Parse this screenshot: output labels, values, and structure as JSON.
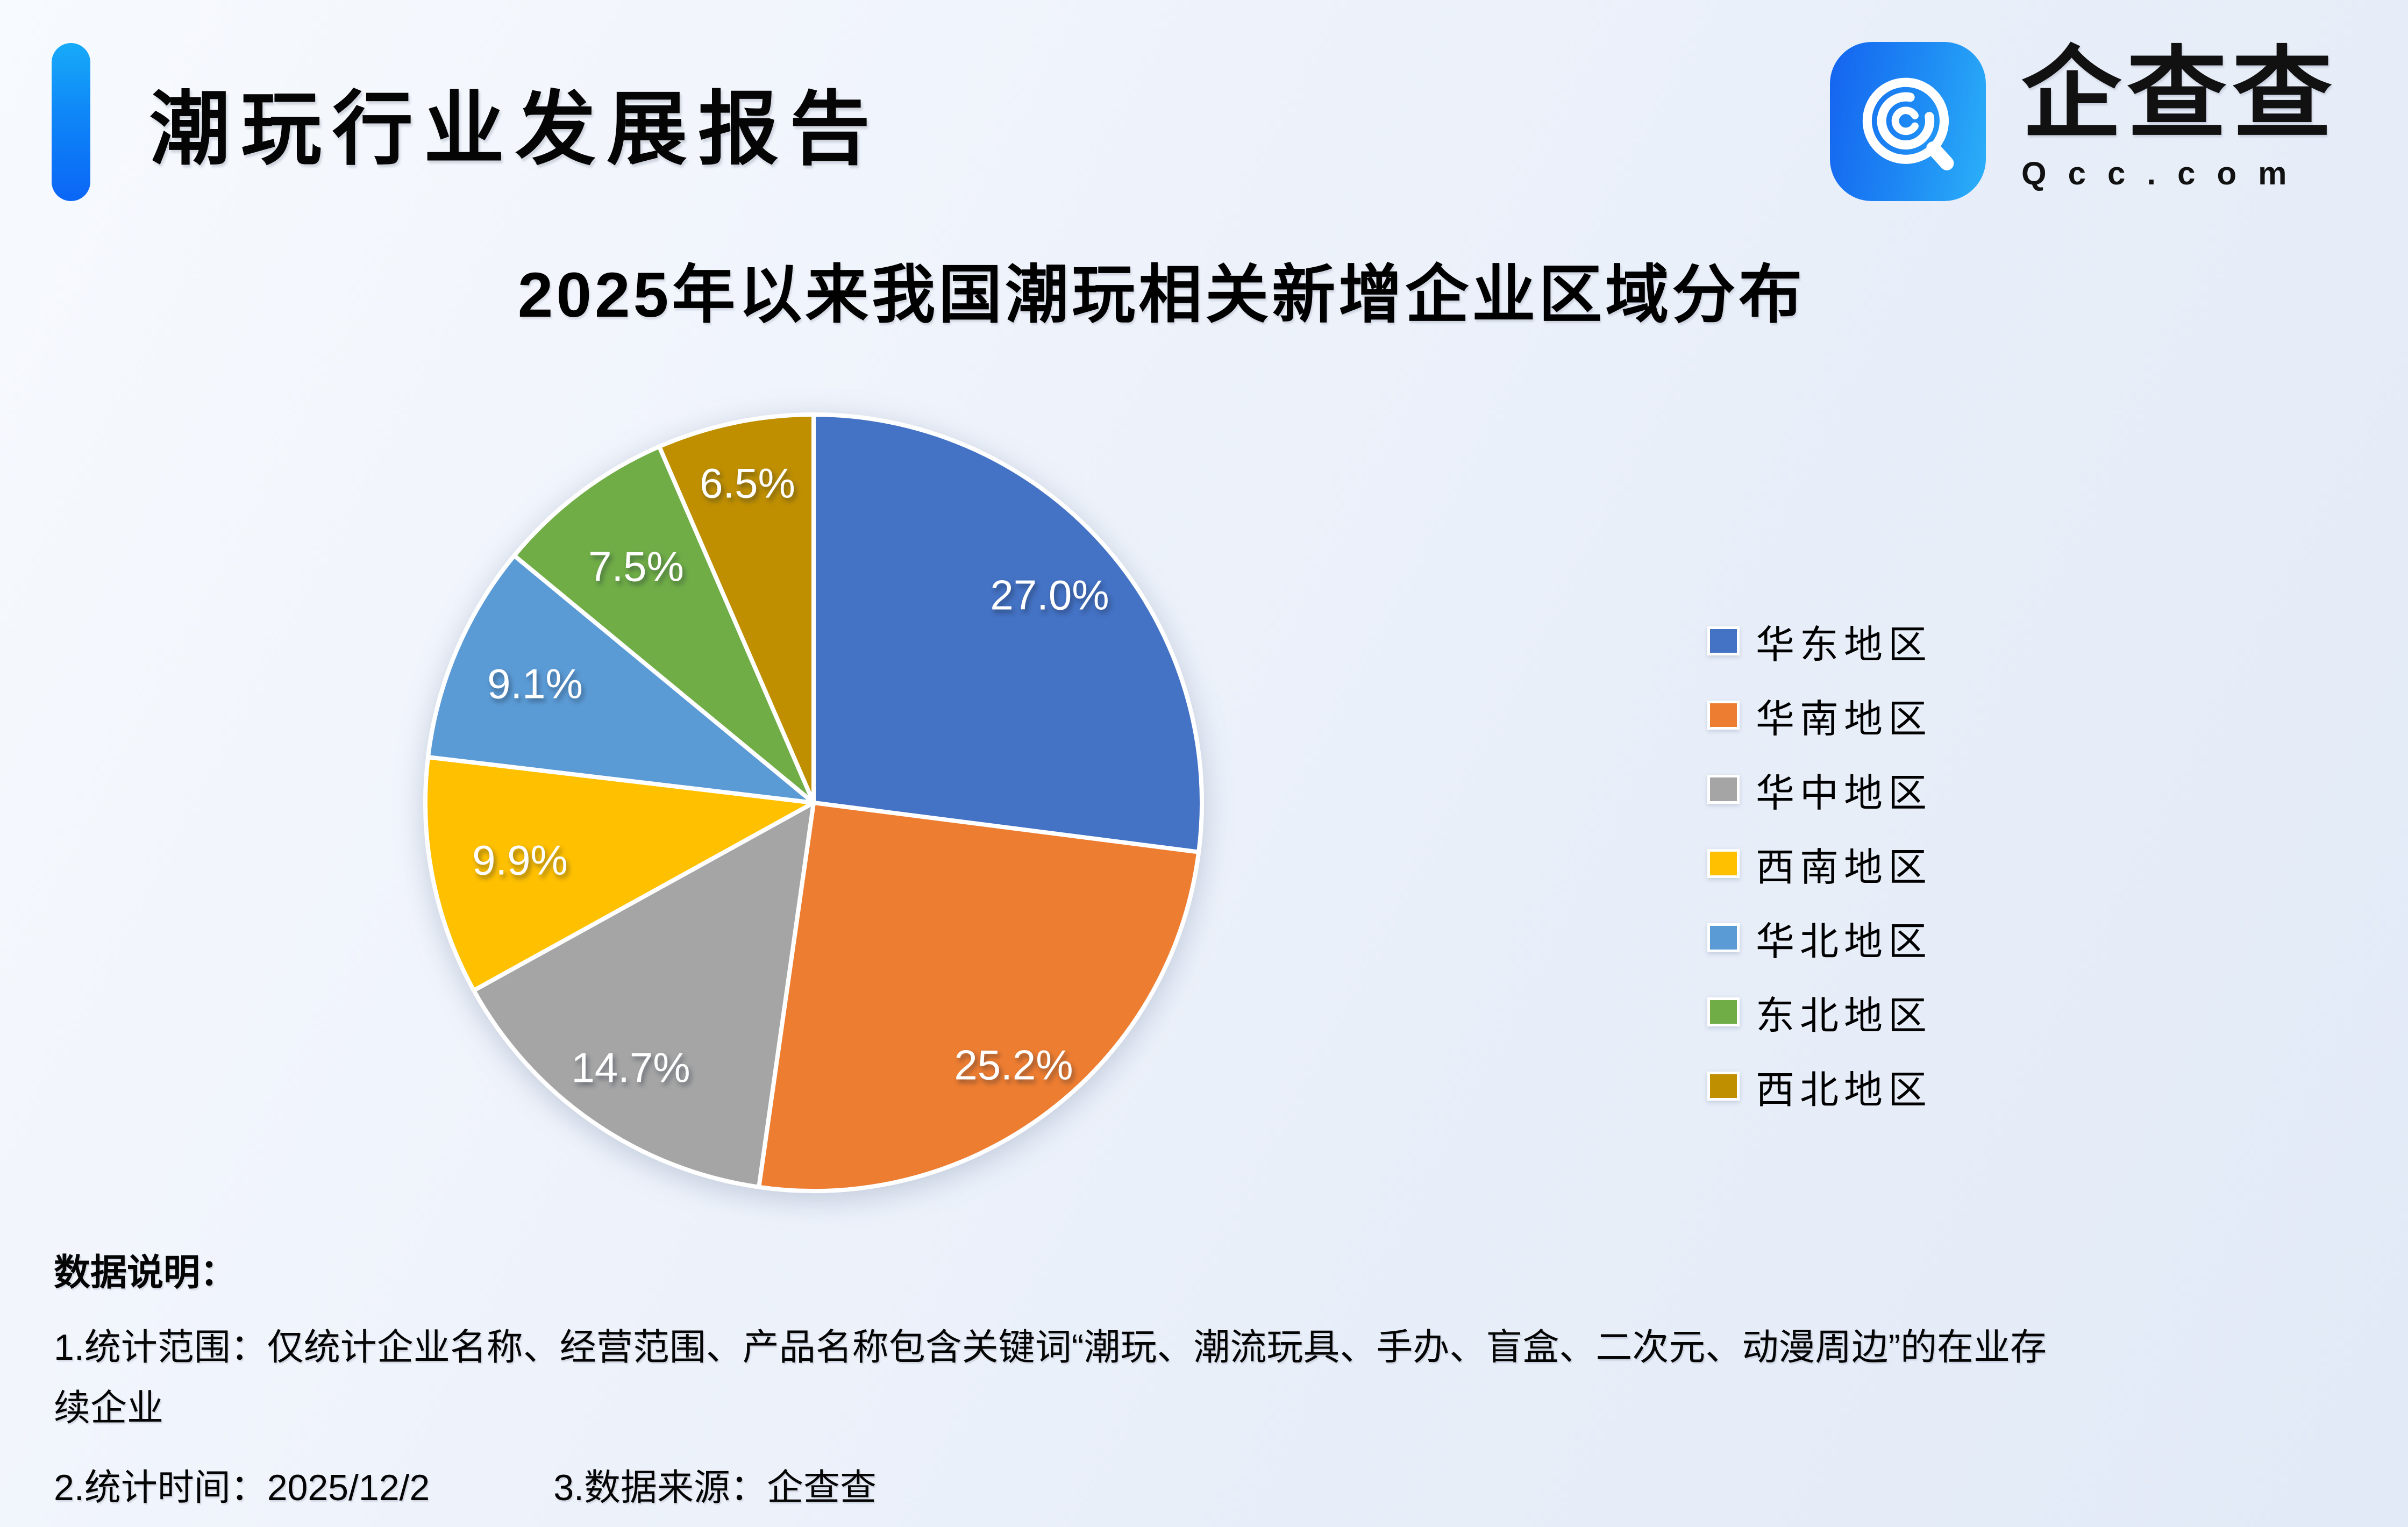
{
  "header": {
    "title": "潮玩行业发展报告",
    "logo": {
      "name_cn": "企查查",
      "domain": "Qcc.com",
      "icon": "qcc-magnifier-icon",
      "accent_bar_top_color": "#17ABF9",
      "accent_bar_bottom_color": "#0B66F6",
      "icon_gradient_start": "#1463EF",
      "icon_gradient_end": "#2BB0F8"
    }
  },
  "chart_data": {
    "type": "pie",
    "title": "2025年以来我国潮玩相关新增企业区域分布",
    "unit": "%",
    "start_angle_deg": 0,
    "direction": "clockwise",
    "legend_position": "right",
    "series": [
      {
        "name": "华东地区",
        "value": 27.0,
        "label": "27.0%",
        "color": "#4472C4"
      },
      {
        "name": "华南地区",
        "value": 25.2,
        "label": "25.2%",
        "color": "#ED7D31"
      },
      {
        "name": "华中地区",
        "value": 14.7,
        "label": "14.7%",
        "color": "#A5A5A5"
      },
      {
        "name": "西南地区",
        "value": 9.9,
        "label": "9.9%",
        "color": "#FFC000"
      },
      {
        "name": "华北地区",
        "value": 9.1,
        "label": "9.1%",
        "color": "#5B9BD5"
      },
      {
        "name": "东北地区",
        "value": 7.5,
        "label": "7.5%",
        "color": "#70AD47"
      },
      {
        "name": "西北地区",
        "value": 6.5,
        "label": "6.5%",
        "color": "#BF8F00"
      }
    ]
  },
  "notes": {
    "heading": "数据说明：",
    "line1": "1.统计范围：仅统计企业名称、经营范围、产品名称包含关键词“潮玩、潮流玩具、手办、盲盒、二次元、动漫周边”的在业存",
    "line2": "续企业",
    "time": "2.统计时间：2025/12/2",
    "source": "3.数据来源：企查查"
  }
}
